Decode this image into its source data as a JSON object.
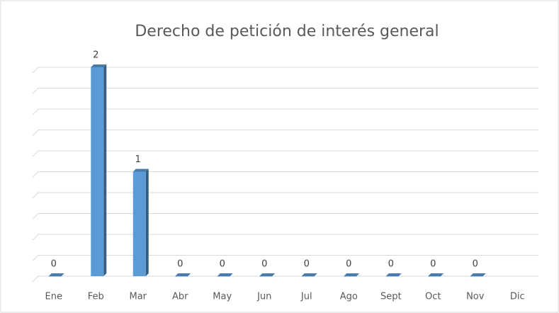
{
  "chart_data": {
    "type": "bar",
    "title": "Derecho de petición de interés general",
    "categories": [
      "Ene",
      "Feb",
      "Mar",
      "Abr",
      "May",
      "Jun",
      "Jul",
      "Ago",
      "Sept",
      "Oct",
      "Nov",
      "Dic"
    ],
    "values": [
      0,
      2,
      1,
      0,
      0,
      0,
      0,
      0,
      0,
      0,
      0,
      null
    ],
    "color": "#5b9bd5",
    "ylim": [
      0,
      2
    ],
    "yticks": [
      0,
      0.2,
      0.4,
      0.6,
      0.8,
      1,
      1.2,
      1.4,
      1.6,
      1.8,
      2
    ],
    "grid": true
  }
}
